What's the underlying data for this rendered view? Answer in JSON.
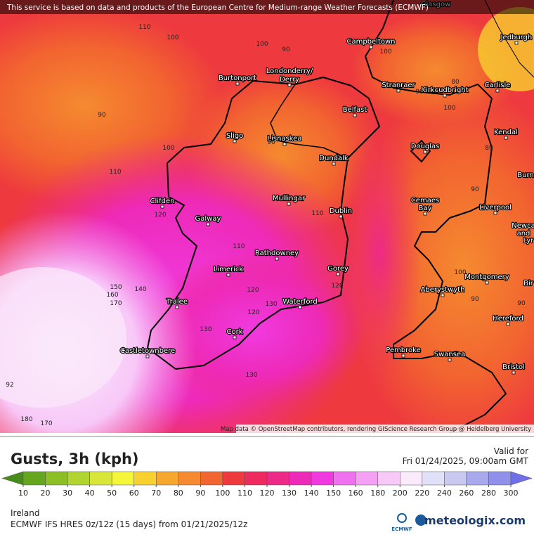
{
  "header": {
    "notice": "This service is based on data and products of the European Centre for Medium-range Weather Forecasts (ECMWF)"
  },
  "map": {
    "cities": [
      "Glasgow",
      "Jedburgh",
      "Campbeltown",
      "Burtonport",
      "Londonderry/",
      "Derry",
      "Stranraer",
      "Kirkcudbright",
      "Carlisle",
      "Belfast",
      "Kendal",
      "Sligo",
      "Lisnaskea",
      "Douglas",
      "Dundalk",
      "Burn",
      "Clifden",
      "Mullingar",
      "Cemaes",
      "Bay",
      "Liverpool",
      "Dublin",
      "Galway",
      "Newca",
      "and",
      "Lyr",
      "Rathdowney",
      "Limerick",
      "Gorey",
      "Montgomery",
      "Bir",
      "Aberystwyth",
      "Tralee",
      "Waterford",
      "Hereford",
      "Cork",
      "Castletownbere",
      "Pembroke",
      "Swansea",
      "Bristol"
    ],
    "contour_labels": [
      110,
      100,
      100,
      90,
      100,
      90,
      110,
      100,
      90,
      80,
      90,
      100,
      80,
      90,
      120,
      110,
      110,
      150,
      140,
      160,
      170,
      120,
      130,
      120,
      120,
      130,
      100,
      90,
      90,
      130,
      92,
      180,
      170
    ],
    "attribution": "Map data © OpenStreetMap contributors, rendering GIScience Research Group @ Heidelberg University"
  },
  "panel": {
    "title": "Gusts, 3h (kph)",
    "valid_label": "Valid for",
    "valid_time": "Fri 01/24/2025, 09:00am GMT",
    "region": "Ireland",
    "model": "ECMWF IFS HRES 0z/12z (15 days) from  01/21/2025/12z",
    "ecmwf_logo": "ECMWF",
    "brand": "meteologix.com"
  },
  "legend": {
    "ticks": [
      10,
      20,
      30,
      40,
      50,
      60,
      70,
      80,
      90,
      100,
      110,
      120,
      130,
      140,
      150,
      160,
      180,
      200,
      220,
      240,
      260,
      280,
      300
    ],
    "colors": [
      "#4a8c1c",
      "#66a61e",
      "#8cbf26",
      "#b0d430",
      "#d8e63a",
      "#f5f53a",
      "#f8d030",
      "#f5a82d",
      "#f58a30",
      "#f26430",
      "#ee3a3e",
      "#ee2a5e",
      "#ee2a88",
      "#ee2ab8",
      "#f03ae0",
      "#f070f0",
      "#f5a0f5",
      "#f8c8f8",
      "#fbeafb",
      "#e0e0f8",
      "#c8c8f0",
      "#a8a8ec",
      "#9090ea",
      "#7070e6"
    ]
  }
}
